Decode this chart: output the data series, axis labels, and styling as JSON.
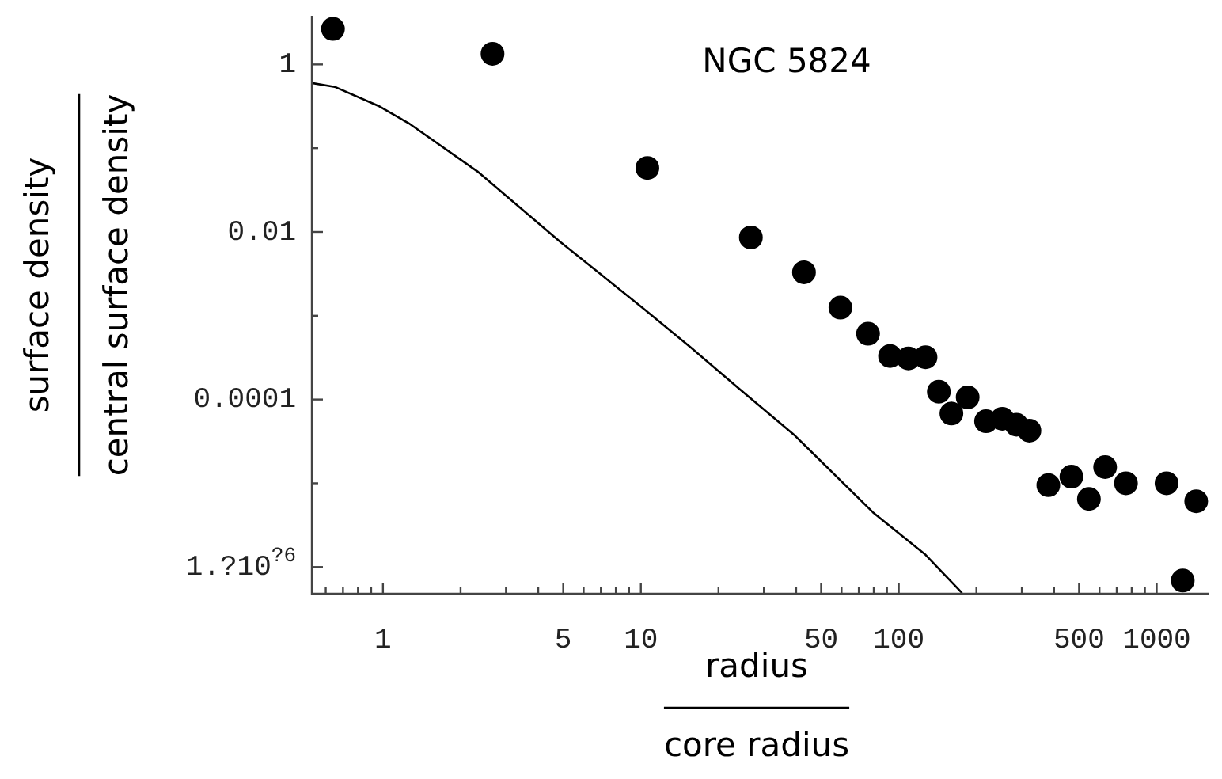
{
  "chart_data": {
    "type": "scatter",
    "title": "NGC 5824",
    "xlabel": "radius\ncore radius",
    "ylabel": "surface density\ncentral surface density",
    "log": "xy",
    "xlim": [
      0.53,
      1600
    ],
    "ylim": [
      4.8e-07,
      3.8
    ],
    "xticks": [
      {
        "value": 0.6,
        "label": null
      },
      {
        "value": 0.7,
        "label": null
      },
      {
        "value": 0.8,
        "label": null
      },
      {
        "value": 0.9,
        "label": null
      },
      1,
      {
        "value": 2,
        "label": null
      },
      {
        "value": 3,
        "label": null
      },
      {
        "value": 4,
        "label": null
      },
      5,
      {
        "value": 6,
        "label": null
      },
      {
        "value": 7,
        "label": null
      },
      {
        "value": 8,
        "label": null
      },
      {
        "value": 9,
        "label": null
      },
      10,
      {
        "value": 20,
        "label": null
      },
      {
        "value": 30,
        "label": null
      },
      {
        "value": 40,
        "label": null
      },
      50,
      {
        "value": 60,
        "label": null
      },
      {
        "value": 70,
        "label": null
      },
      {
        "value": 80,
        "label": null
      },
      {
        "value": 90,
        "label": null
      },
      100,
      {
        "value": 200,
        "label": null
      },
      {
        "value": 300,
        "label": null
      },
      {
        "value": 400,
        "label": null
      },
      500,
      {
        "value": 600,
        "label": null
      },
      {
        "value": 700,
        "label": null
      },
      {
        "value": 800,
        "label": null
      },
      {
        "value": 900,
        "label": null
      },
      1000
    ],
    "yticks": [
      1,
      {
        "value": 0.1,
        "label": null
      },
      0.01,
      {
        "value": 0.001,
        "label": null
      },
      0.0001,
      {
        "value": 1e-05,
        "label": null
      },
      {
        "value": 1e-06,
        "label": "1.?10$^{?6}$"
      }
    ],
    "series": [
      {
        "marker": "circle",
        "color": "#000000",
        "x": [
          0.64,
          2.66,
          10.6,
          26.7,
          42.9,
          59.4,
          76,
          92.5,
          109,
          127,
          143,
          160,
          185,
          218,
          252,
          286,
          321,
          380,
          467,
          546,
          631,
          760,
          1092,
          1423,
          1262
        ],
        "values": [
          2.65,
          1.34,
          0.058,
          0.0086,
          0.0033,
          0.00125,
          0.00061,
          0.00033,
          0.00031,
          0.00032,
          0.000124,
          6.8e-05,
          0.000106,
          5.5e-05,
          5.9e-05,
          5e-05,
          4.25e-05,
          9.5e-06,
          1.2e-05,
          6.5e-06,
          1.56e-05,
          1e-05,
          1e-05,
          6.1e-06,
          6.9e-07
        ]
      },
      {
        "type": "line",
        "marker": "none",
        "color": "#000000",
        "x": [
          0.53,
          0.65,
          0.96,
          1.27,
          2.32,
          4.9,
          10.3,
          15.6,
          23.7,
          39.6,
          79.4,
          127,
          176
        ],
        "values": [
          0.6,
          0.54,
          0.32,
          0.195,
          0.053,
          0.0075,
          0.0012,
          0.00042,
          0.00014,
          3.7e-05,
          4.5e-06,
          1.4e-06,
          4.9e-07
        ]
      }
    ]
  }
}
